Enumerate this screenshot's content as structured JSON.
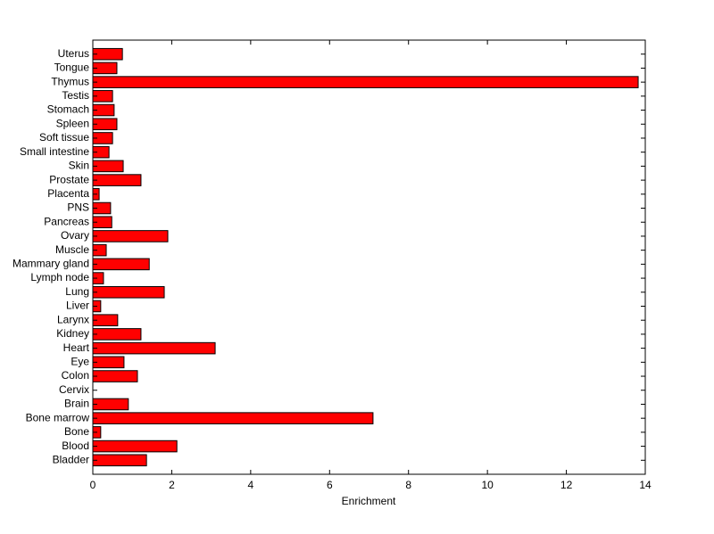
{
  "chart_data": {
    "type": "barh",
    "xlabel": "Enrichment",
    "categories": [
      "Bladder",
      "Blood",
      "Bone",
      "Bone marrow",
      "Brain",
      "Cervix",
      "Colon",
      "Eye",
      "Heart",
      "Kidney",
      "Larynx",
      "Liver",
      "Lung",
      "Lymph node",
      "Mammary gland",
      "Muscle",
      "Ovary",
      "Pancreas",
      "PNS",
      "Placenta",
      "Prostate",
      "Skin",
      "Small intestine",
      "Soft tissue",
      "Spleen",
      "Stomach",
      "Testis",
      "Thymus",
      "Tongue",
      "Uterus"
    ],
    "values": [
      1.36,
      2.13,
      0.2,
      7.1,
      0.9,
      0,
      1.13,
      0.79,
      3.1,
      1.22,
      0.63,
      0.2,
      1.81,
      0.27,
      1.43,
      0.34,
      1.9,
      0.48,
      0.45,
      0.16,
      1.22,
      0.77,
      0.41,
      0.5,
      0.61,
      0.54,
      0.5,
      13.82,
      0.61,
      0.75
    ],
    "color": "#ff0000",
    "xlim": [
      0,
      14
    ],
    "xticks": [
      0,
      2,
      4,
      6,
      8,
      10,
      12,
      14
    ]
  }
}
